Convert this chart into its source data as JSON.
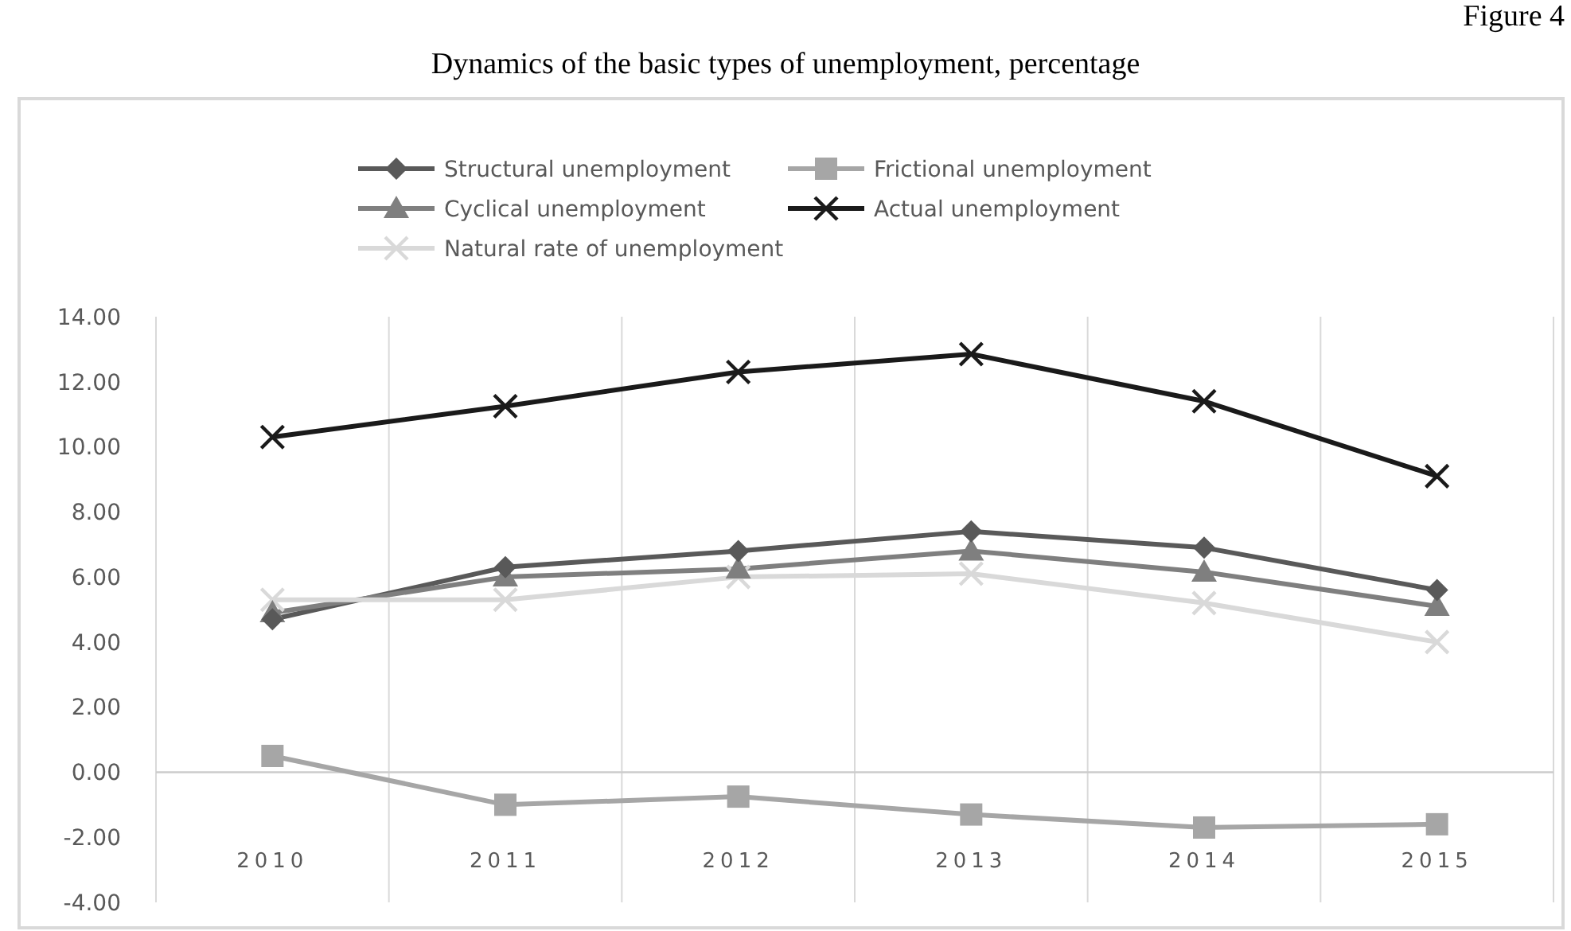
{
  "chart_data": {
    "type": "line",
    "title": "Dynamics of the basic types of unemployment, percentage",
    "annotations": [
      "Figure 4"
    ],
    "categories": [
      "2010",
      "2011",
      "2012",
      "2013",
      "2014",
      "2015"
    ],
    "series": [
      {
        "name": "Structural unemployment",
        "color": "#595959",
        "marker": "diamond",
        "values": [
          4.7,
          6.3,
          6.8,
          7.4,
          6.9,
          5.6
        ]
      },
      {
        "name": "Frictional unemployment",
        "color": "#a6a6a6",
        "marker": "square",
        "values": [
          0.5,
          -1.0,
          -0.75,
          -1.3,
          -1.7,
          -1.6
        ]
      },
      {
        "name": "Cyclical unemployment",
        "color": "#7f7f7f",
        "marker": "triangle",
        "values": [
          4.9,
          6.0,
          6.25,
          6.8,
          6.15,
          5.1
        ]
      },
      {
        "name": "Actual unemployment",
        "color": "#1a1a1a",
        "marker": "cross",
        "values": [
          10.3,
          11.25,
          12.3,
          12.85,
          11.4,
          9.1
        ]
      },
      {
        "name": "Natural rate of unemployment",
        "color": "#d9d9d9",
        "marker": "cross",
        "values": [
          5.3,
          5.3,
          6.0,
          6.1,
          5.2,
          4.0
        ]
      }
    ],
    "ylim": [
      -4,
      14
    ],
    "yticks": [
      {
        "value": -4,
        "label": "-4.00"
      },
      {
        "value": -2,
        "label": "-2.00"
      },
      {
        "value": 0,
        "label": "0.00"
      },
      {
        "value": 2,
        "label": "2.00"
      },
      {
        "value": 4,
        "label": "4.00"
      },
      {
        "value": 6,
        "label": "6.00"
      },
      {
        "value": 8,
        "label": "8.00"
      },
      {
        "value": 10,
        "label": "10.00"
      },
      {
        "value": 12,
        "label": "12.00"
      },
      {
        "value": 14,
        "label": "14.00"
      }
    ],
    "grid": "x",
    "legend": "top",
    "line_style": "solid"
  }
}
